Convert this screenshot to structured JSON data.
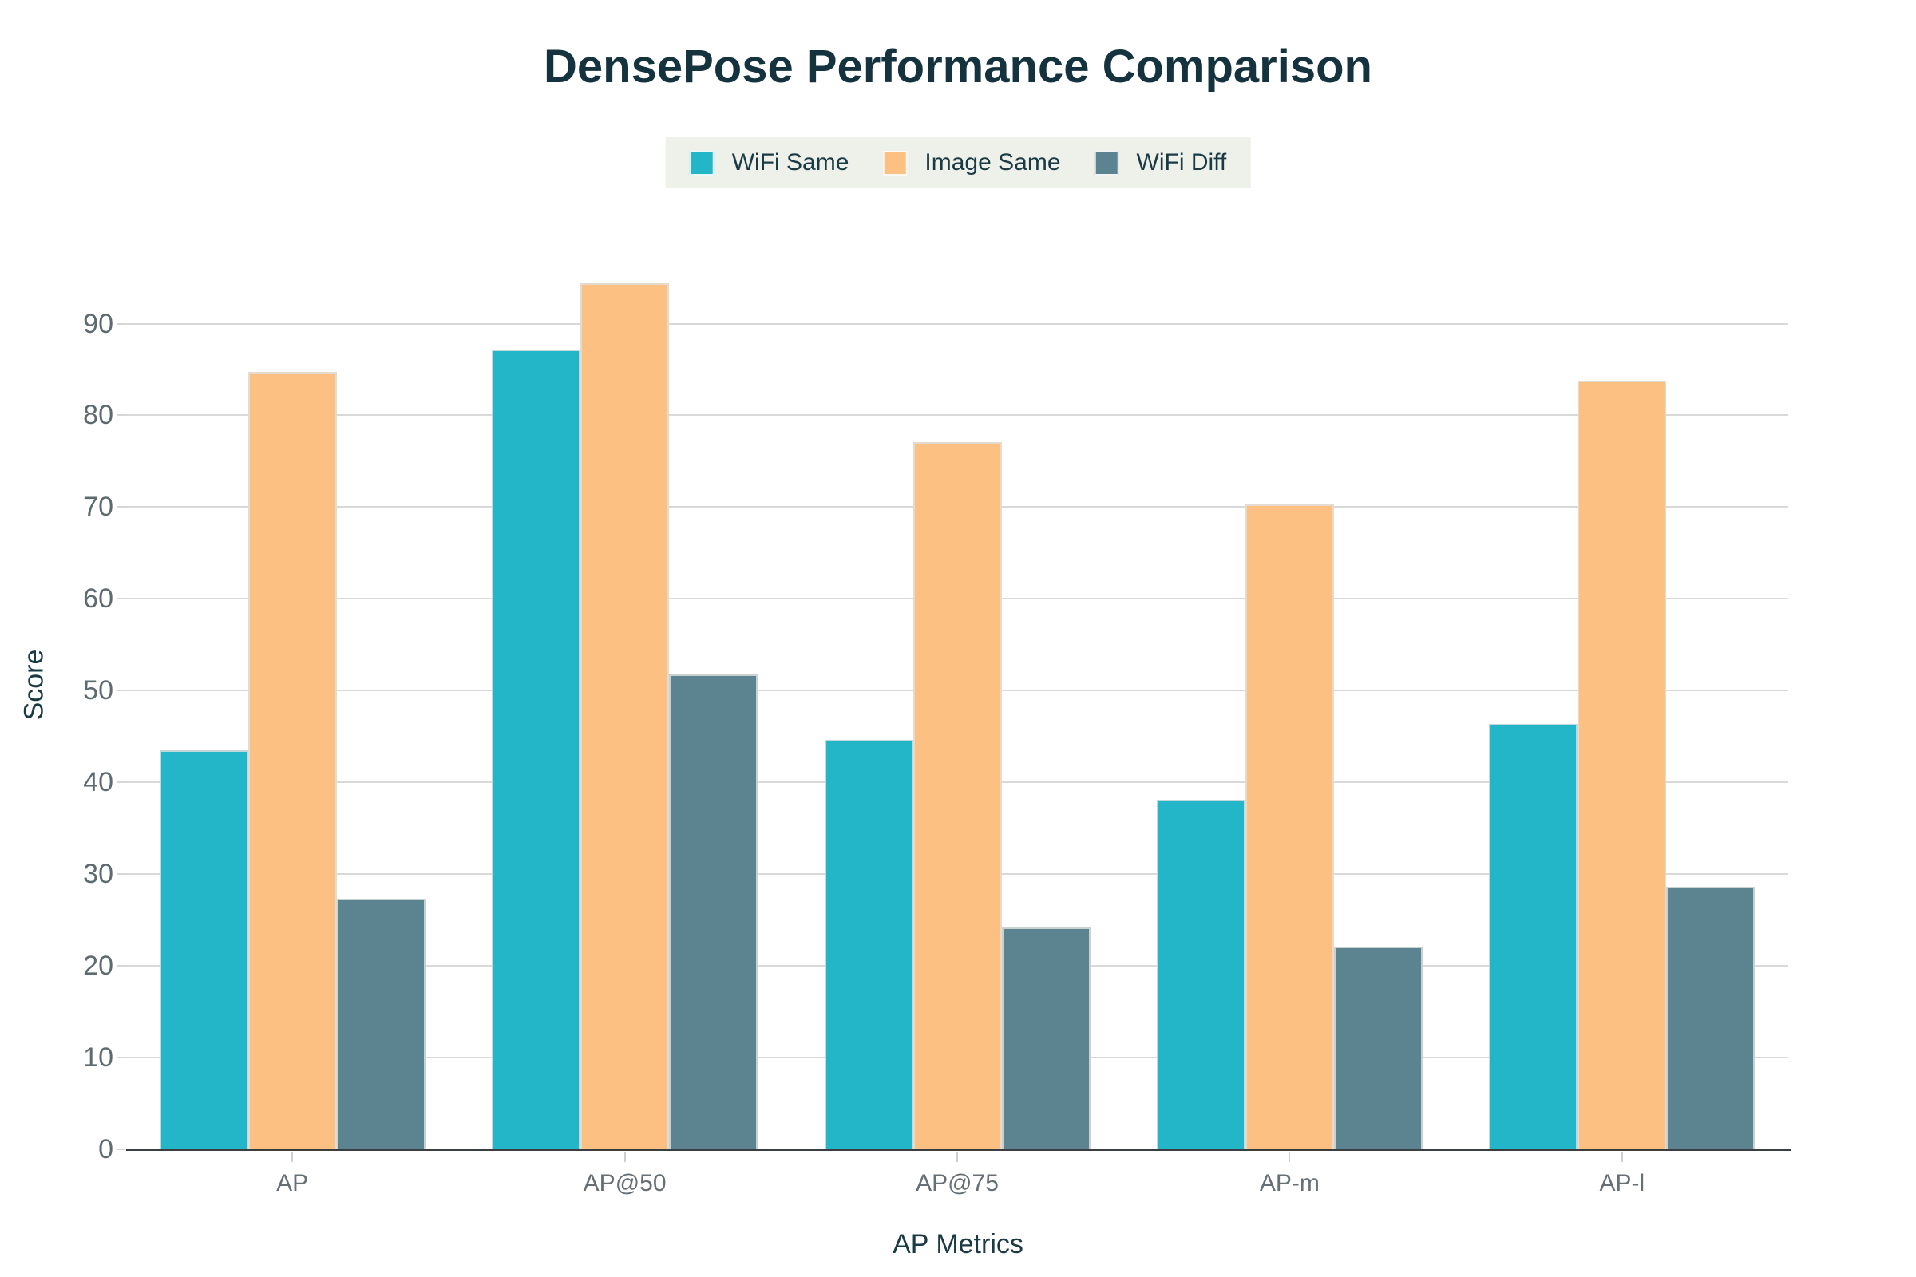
{
  "chart_data": {
    "type": "bar",
    "title": "DensePose Performance Comparison",
    "xlabel": "AP Metrics",
    "ylabel": "Score",
    "categories": [
      "AP",
      "AP@50",
      "AP@75",
      "AP-m",
      "AP-l"
    ],
    "series": [
      {
        "name": "WiFi Same",
        "color": "#23b5c8",
        "values": [
          43.5,
          87.2,
          44.6,
          38.1,
          46.4
        ]
      },
      {
        "name": "Image Same",
        "color": "#fcc083",
        "values": [
          84.7,
          94.4,
          77.1,
          70.3,
          83.8
        ]
      },
      {
        "name": "WiFi Diff",
        "color": "#5b8490",
        "values": [
          27.3,
          51.8,
          24.2,
          22.1,
          28.6
        ]
      }
    ],
    "yticks": [
      0,
      10,
      20,
      30,
      40,
      50,
      60,
      70,
      80,
      90
    ],
    "ylim": [
      0,
      95.7
    ],
    "grid": true,
    "legend_position": "top",
    "colors": {
      "title_text": "#14333e",
      "axis_title_text": "#1a3a44",
      "tick_label": "#5d6a70",
      "gridline": "#d9d9d9",
      "axis_line": "#3a3e40",
      "legend_bg": "#eef0ea",
      "legend_text": "#1a3a44",
      "bar_edge": "#dedede"
    }
  }
}
